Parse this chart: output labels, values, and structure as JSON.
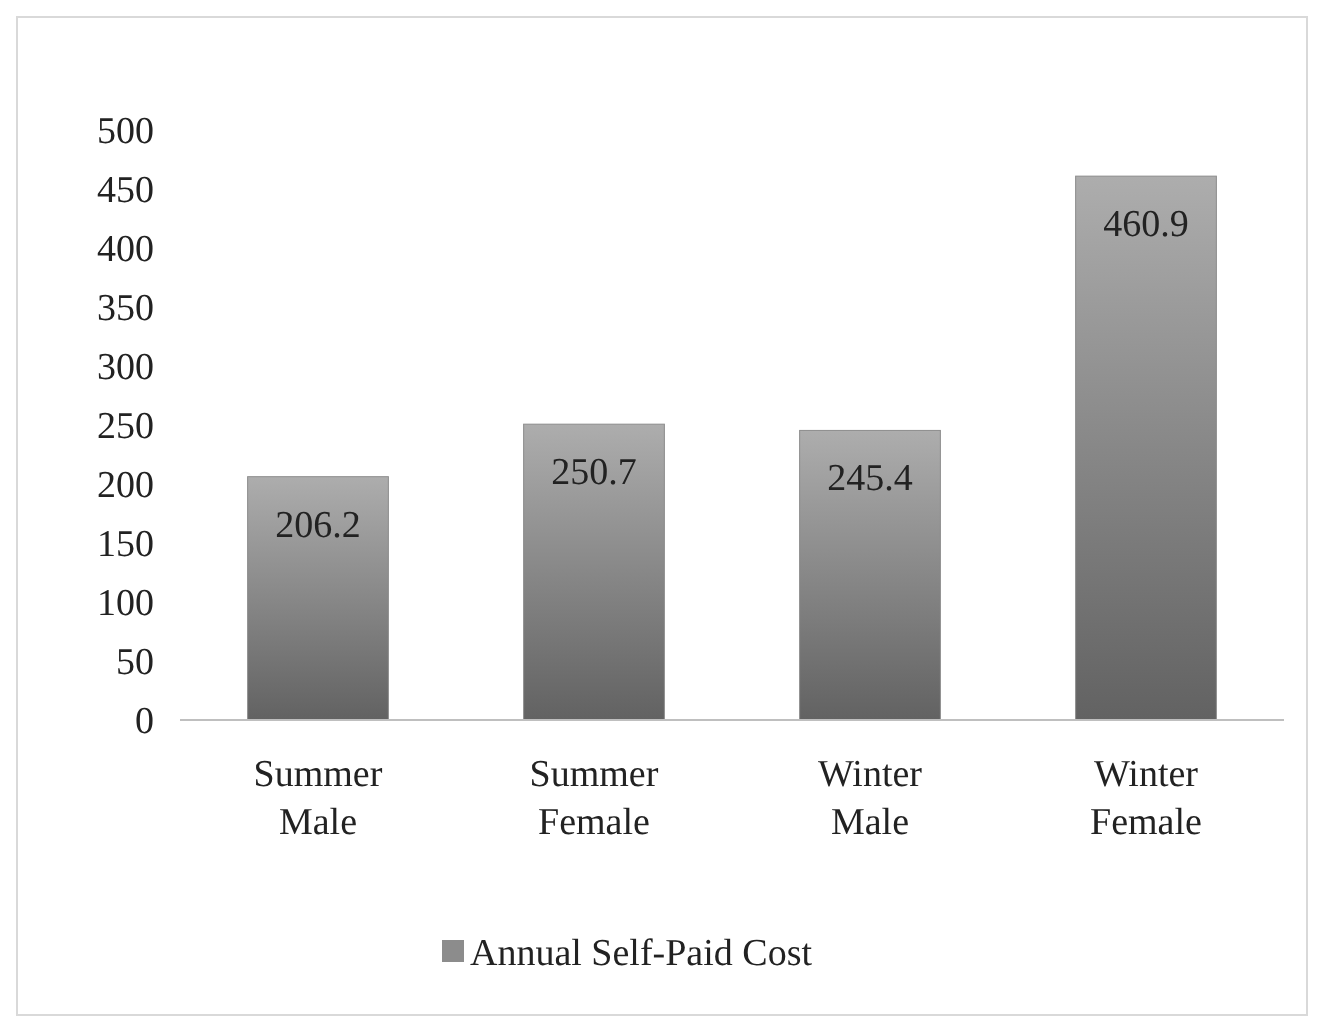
{
  "chart_data": {
    "type": "bar",
    "categories": [
      "Summer Male",
      "Summer Female",
      "Winter Male",
      "Winter Female"
    ],
    "series": [
      {
        "name": "Annual Self-Paid Cost",
        "color": "#8c8c8c",
        "values": [
          206.2,
          250.7,
          245.4,
          460.9
        ]
      }
    ],
    "ylim": [
      0,
      500
    ],
    "yticks": [
      0,
      50,
      100,
      150,
      200,
      250,
      300,
      350,
      400,
      450,
      500
    ],
    "grid": false,
    "legend": "bottom",
    "data_labels": true
  }
}
